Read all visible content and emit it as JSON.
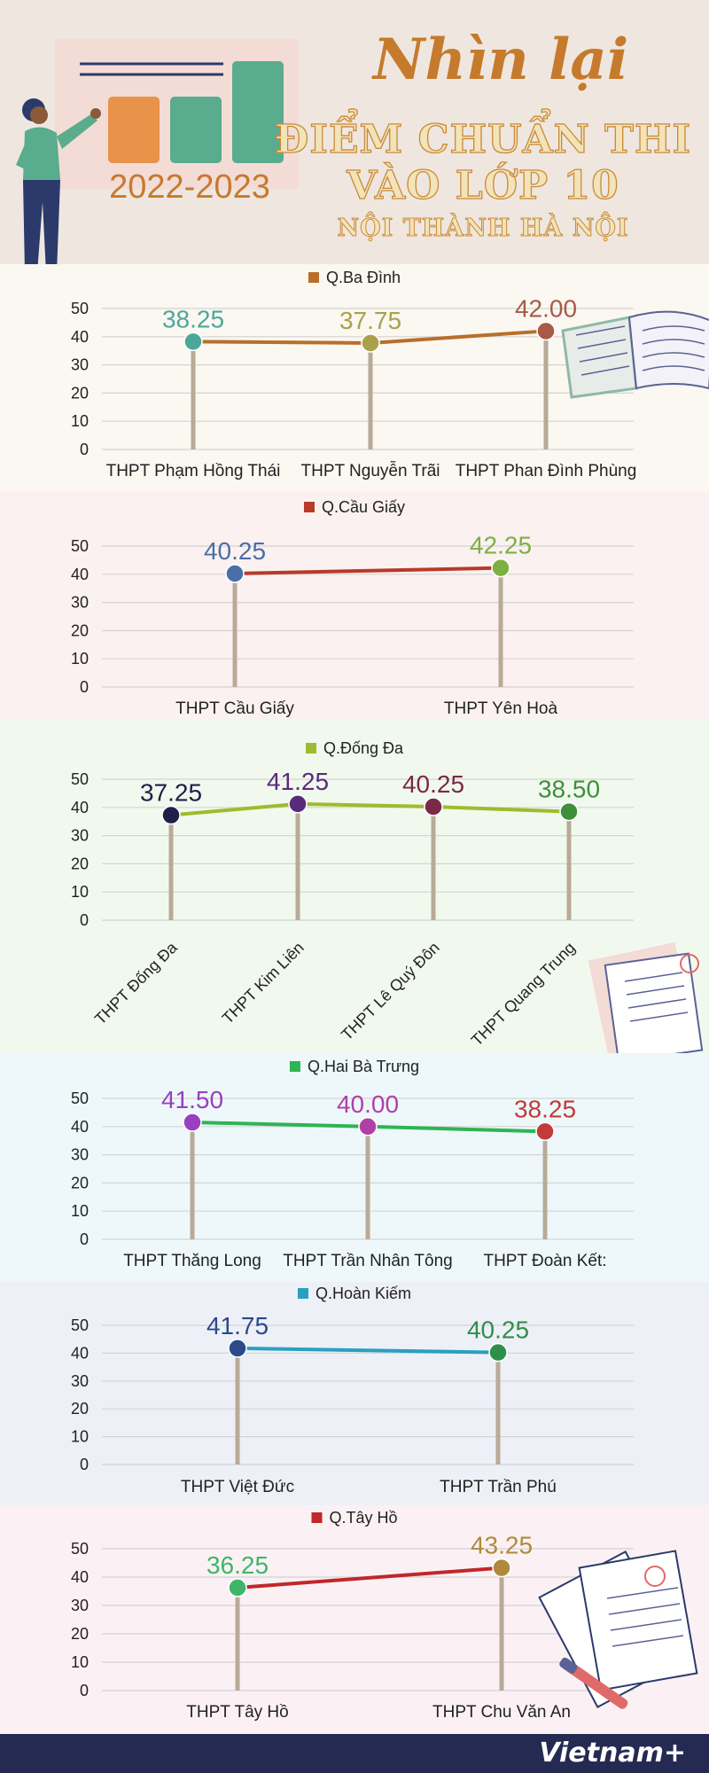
{
  "header": {
    "title_line1": "Nhìn lại",
    "title_line2": "ĐIỂM CHUẨN THI",
    "title_line3": "VÀO LỚP 10",
    "title_line4": "NỘI THÀNH HÀ NỘI",
    "years": "2022-2023"
  },
  "footer": {
    "brand": "Vietnam+"
  },
  "colors": {
    "stem": "#b9aa98",
    "grid": "#d4d4d4",
    "axis_text": "#222222"
  },
  "chart_data": [
    {
      "type": "line",
      "series_name": "Q.Ba Đình",
      "line_color": "#b86f2a",
      "legend_position": "top-center",
      "ylim": [
        0,
        50
      ],
      "yticks": [
        0,
        10,
        20,
        30,
        40,
        50
      ],
      "grid": true,
      "categories": [
        "THPT Phạm Hồng Thái",
        "THPT Nguyễn Trãi",
        "THPT Phan Đình Phùng"
      ],
      "values": [
        38.25,
        37.75,
        42.0
      ],
      "labels": [
        "38.25",
        "37.75",
        "42.00"
      ],
      "point_colors": [
        "#4aa89a",
        "#a9a04a",
        "#a85a46"
      ],
      "rotate_labels": false
    },
    {
      "type": "line",
      "series_name": "Q.Cầu Giấy",
      "line_color": "#b73a2a",
      "legend_position": "top-center",
      "ylim": [
        0,
        50
      ],
      "yticks": [
        0,
        10,
        20,
        30,
        40,
        50
      ],
      "grid": true,
      "categories": [
        "THPT Cầu Giấy",
        "THPT Yên Hoà"
      ],
      "values": [
        40.25,
        42.25
      ],
      "labels": [
        "40.25",
        "42.25"
      ],
      "point_colors": [
        "#4a6fa8",
        "#7db042"
      ],
      "rotate_labels": false
    },
    {
      "type": "line",
      "series_name": "Q.Đống Đa",
      "line_color": "#9dbb2e",
      "legend_position": "top-center",
      "ylim": [
        0,
        50
      ],
      "yticks": [
        0,
        10,
        20,
        30,
        40,
        50
      ],
      "grid": true,
      "categories": [
        "THPT Đống Đa",
        "THPT Kim Liên",
        "THPT Lê Quý Đôn",
        "THPT Quang Trung"
      ],
      "values": [
        37.25,
        41.25,
        40.25,
        38.5
      ],
      "labels": [
        "37.25",
        "41.25",
        "40.25",
        "38.50"
      ],
      "point_colors": [
        "#1f1f4a",
        "#5a2a7a",
        "#7a2a48",
        "#3f8f3a"
      ],
      "rotate_labels": true
    },
    {
      "type": "line",
      "series_name": "Q.Hai Bà Trưng",
      "line_color": "#2db553",
      "legend_position": "top-center",
      "ylim": [
        0,
        50
      ],
      "yticks": [
        0,
        10,
        20,
        30,
        40,
        50
      ],
      "grid": true,
      "categories": [
        "THPT Thăng Long",
        "THPT Trần Nhân Tông",
        "THPT Đoàn Kết:"
      ],
      "values": [
        41.5,
        40.0,
        38.25
      ],
      "labels": [
        "41.50",
        "40.00",
        "38.25"
      ],
      "point_colors": [
        "#9a3fbf",
        "#b13fa8",
        "#c23a3a"
      ],
      "rotate_labels": false
    },
    {
      "type": "line",
      "series_name": "Q.Hoàn Kiếm",
      "line_color": "#2aa0c0",
      "legend_position": "top-center",
      "ylim": [
        0,
        50
      ],
      "yticks": [
        0,
        10,
        20,
        30,
        40,
        50
      ],
      "grid": true,
      "categories": [
        "THPT Việt Đức",
        "THPT Trần Phú"
      ],
      "values": [
        41.75,
        40.25
      ],
      "labels": [
        "41.75",
        "40.25"
      ],
      "point_colors": [
        "#2a4a8a",
        "#2f8f4a"
      ],
      "rotate_labels": false
    },
    {
      "type": "line",
      "series_name": "Q.Tây Hồ",
      "line_color": "#c0282a",
      "legend_position": "top-center",
      "ylim": [
        0,
        50
      ],
      "yticks": [
        0,
        10,
        20,
        30,
        40,
        50
      ],
      "grid": true,
      "categories": [
        "THPT Tây Hồ",
        "THPT Chu Văn An"
      ],
      "values": [
        36.25,
        43.25
      ],
      "labels": [
        "36.25",
        "43.25"
      ],
      "point_colors": [
        "#3fb56a",
        "#b08a3a"
      ],
      "rotate_labels": false
    }
  ]
}
